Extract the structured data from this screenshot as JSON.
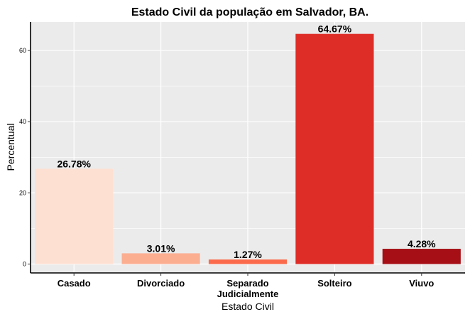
{
  "chart_data": {
    "type": "bar",
    "title": "Estado Civil da população em Salvador, BA.",
    "xlabel": "Estado Civil",
    "ylabel": "Percentual",
    "categories": [
      "Casado",
      "Divorciado",
      "Separado\nJudicialmente",
      "Solteiro",
      "Viuvo"
    ],
    "values": [
      26.78,
      3.01,
      1.27,
      64.67,
      4.28
    ],
    "value_labels": [
      "26.78%",
      "3.01%",
      "1.27%",
      "64.67%",
      "4.28%"
    ],
    "colors": [
      "#fee0d2",
      "#fcae91",
      "#fb6a4a",
      "#de2d26",
      "#a50f15"
    ],
    "yticks": [
      0,
      20,
      40,
      60
    ],
    "ylim": [
      -2.5,
      68
    ],
    "grid": true,
    "panel_background": "#ebebeb",
    "legend": "none"
  }
}
